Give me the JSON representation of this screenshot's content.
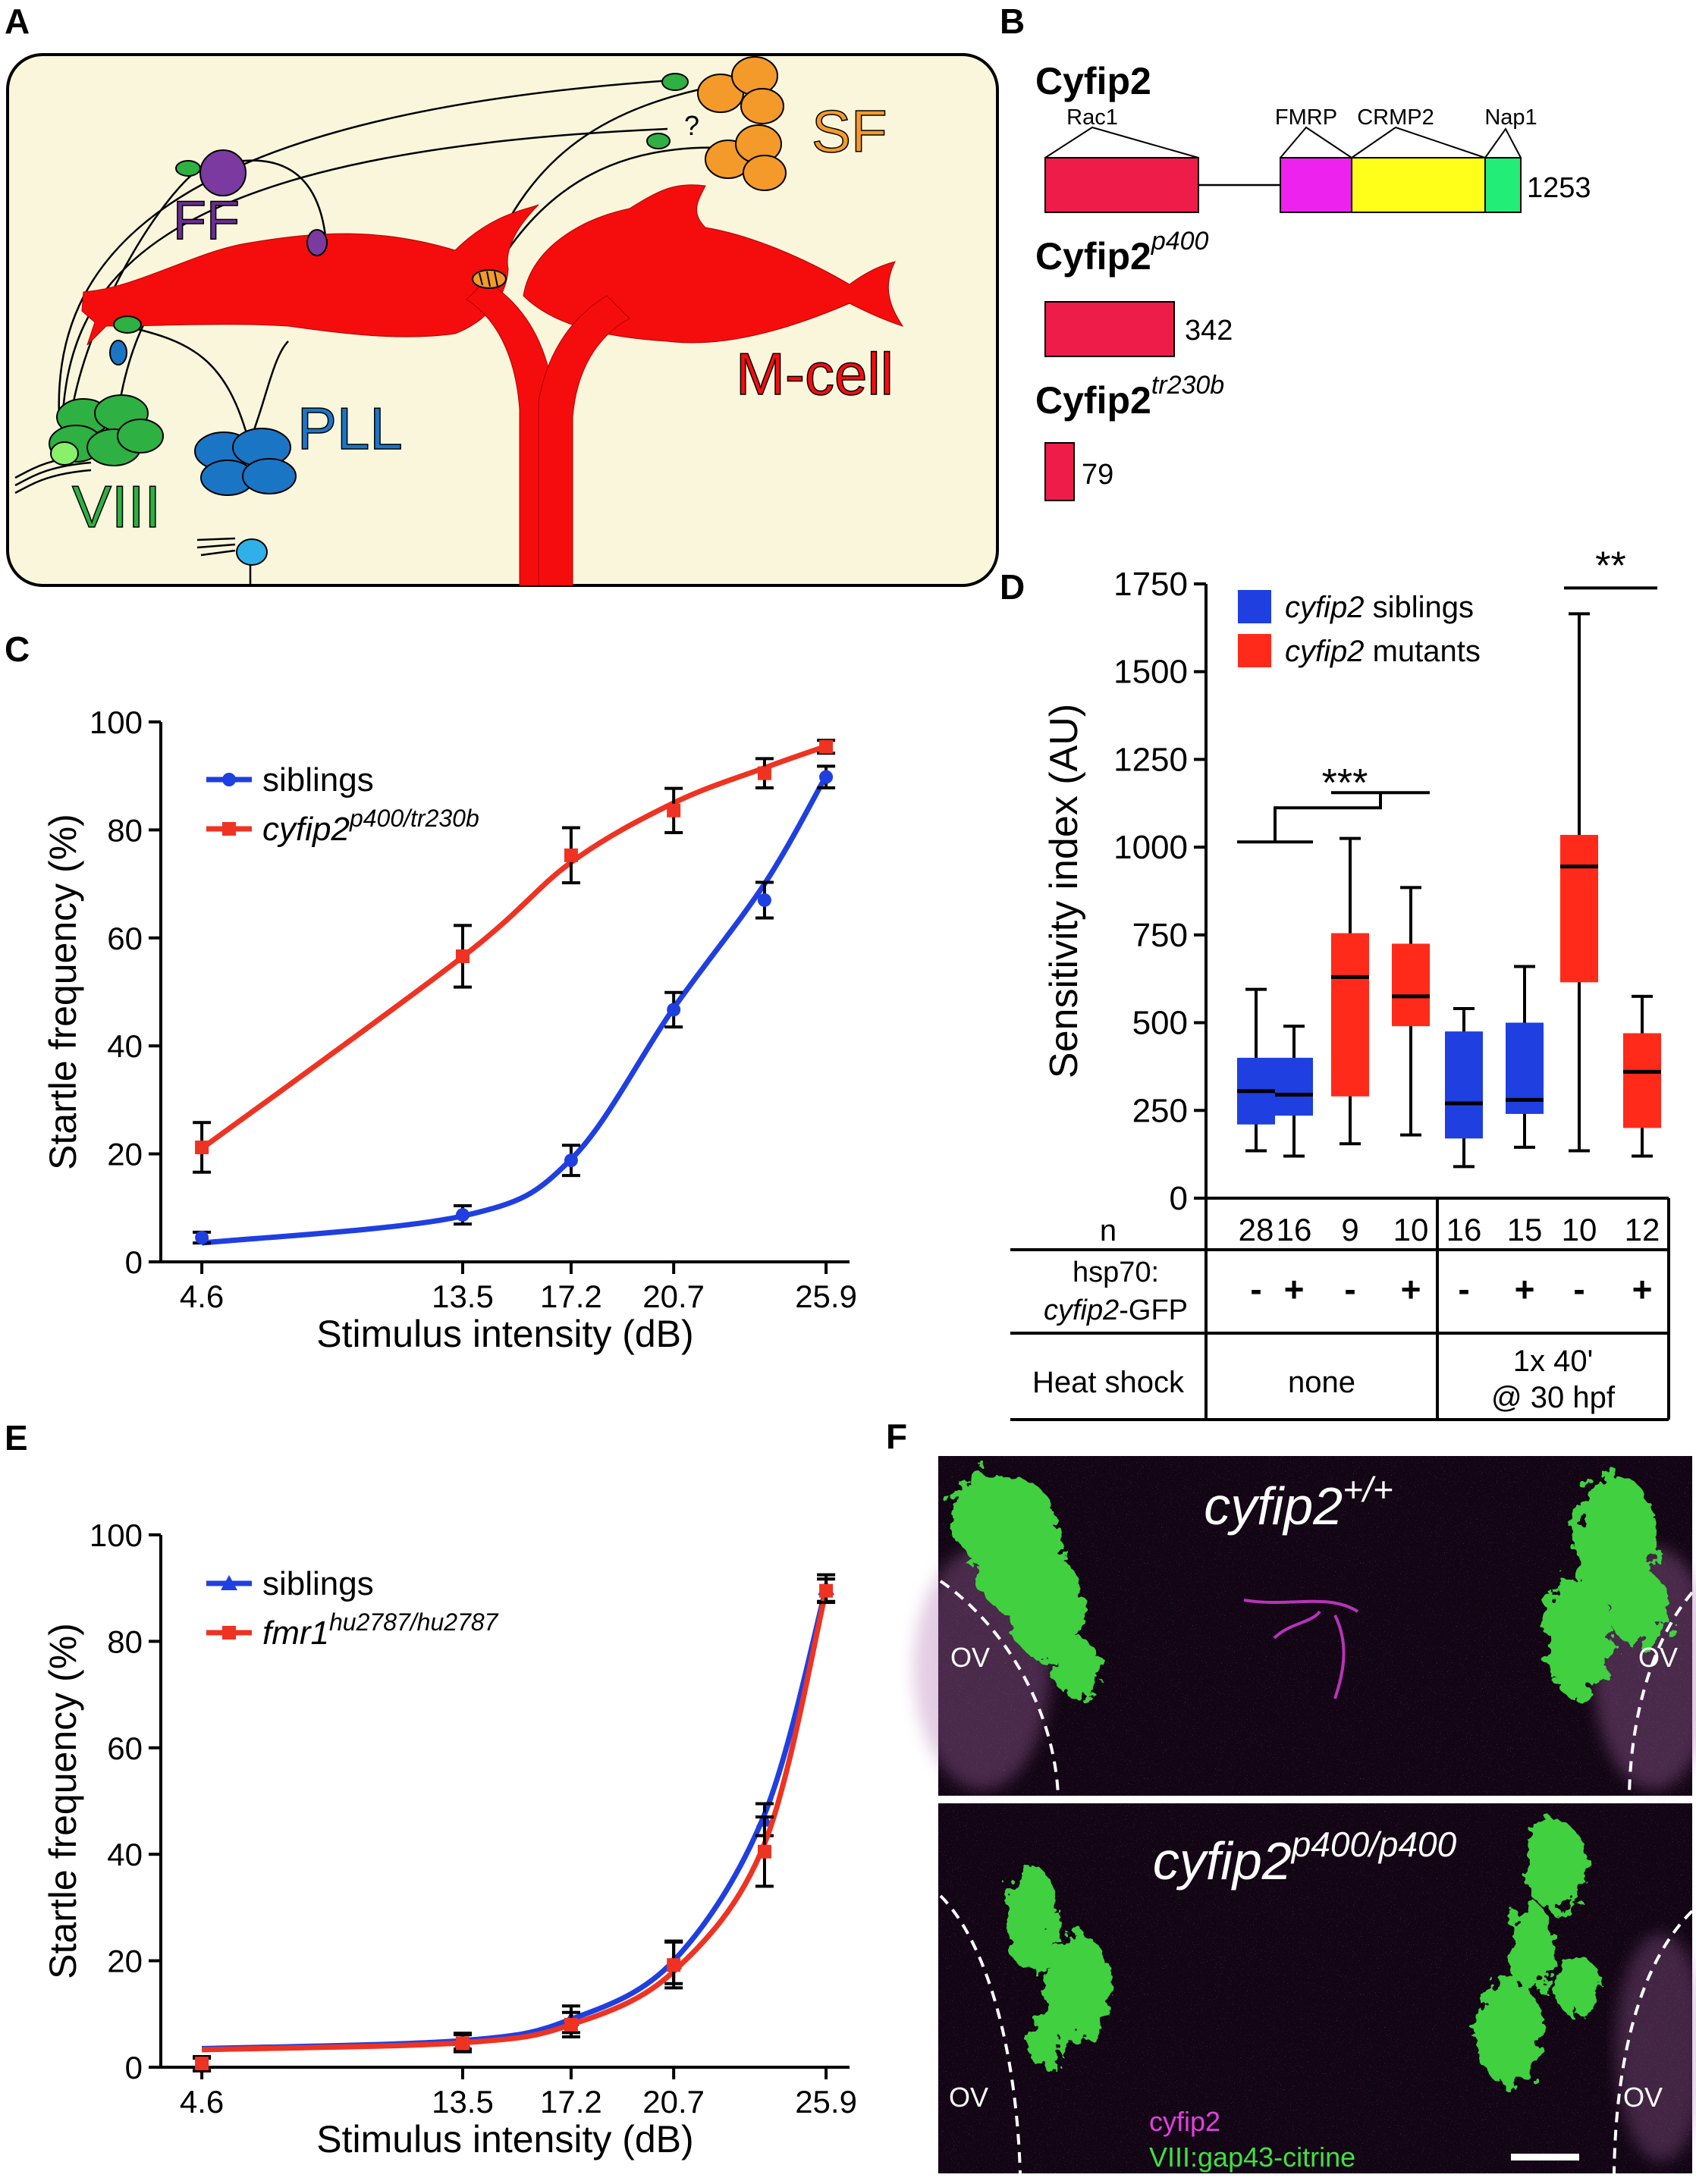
{
  "panels": {
    "A": {
      "label": "A",
      "nuclei": {
        "FF": "FF",
        "SF": "SF",
        "PLL": "PLL",
        "VIII": "VIII",
        "mcell": "M-cell",
        "question": "?"
      }
    },
    "B": {
      "label": "B",
      "proteins": [
        {
          "name": "Cyfip2",
          "superscript": "",
          "length": "1253",
          "domains": [
            "Rac1",
            "FMRP",
            "CRMP2",
            "Nap1"
          ]
        },
        {
          "name": "Cyfip2",
          "superscript": "p400",
          "length": "342"
        },
        {
          "name": "Cyfip2",
          "superscript": "tr230b",
          "length": "79"
        }
      ],
      "colors": {
        "rac1": "#ee1c48",
        "fmrp": "#ee22ee",
        "crmp2": "#ffff1a",
        "nap1": "#22ee77"
      }
    },
    "C": {
      "label": "C",
      "chart_data": {
        "type": "line",
        "xlabel": "Stimulus intensity (dB)",
        "ylabel": "Startle frequency (%)",
        "ylim": [
          0,
          100
        ],
        "yticks": [
          "0",
          "20",
          "40",
          "60",
          "80",
          "100"
        ],
        "xticks": [
          "4.6",
          "13.5",
          "17.2",
          "20.7",
          "25.9"
        ],
        "xtick_values": [
          4.6,
          13.5,
          17.2,
          20.7,
          25.9
        ],
        "xlim": [
          3.2,
          26.7
        ],
        "legend_position": "top-left",
        "series": [
          {
            "name": "siblings",
            "name_super": "",
            "color": "#1f3fe0",
            "marker": "circle",
            "x": [
              4.6,
              13.5,
              17.2,
              20.7,
              23.8,
              25.9
            ],
            "y": [
              4.5,
              8.7,
              18.8,
              46.7,
              67.0,
              89.8
            ],
            "err": [
              1.0,
              1.7,
              2.8,
              3.2,
              3.3,
              2.0
            ],
            "fit": [
              3.5,
              8.5,
              19.0,
              47.0,
              70.0,
              90.0
            ]
          },
          {
            "name": "cyfip2",
            "name_super": "p400/tr230b",
            "color": "#ee3322",
            "marker": "square",
            "x": [
              4.6,
              13.5,
              17.2,
              20.7,
              23.8,
              25.9
            ],
            "y": [
              21.2,
              56.6,
              75.3,
              83.6,
              90.5,
              95.4
            ],
            "err": [
              4.6,
              5.7,
              5.1,
              4.1,
              2.7,
              1.2
            ],
            "fit": [
              21.0,
              56.5,
              74.0,
              85.0,
              91.5,
              95.5
            ]
          }
        ]
      }
    },
    "D": {
      "label": "D",
      "chart_data": {
        "type": "box",
        "ylabel": "Sensitivity index (AU)",
        "ylim": [
          0,
          1750
        ],
        "yticks": [
          "0",
          "250",
          "500",
          "750",
          "1000",
          "1250",
          "1500",
          "1750"
        ],
        "legend": [
          {
            "name_italic": "cyfip2",
            "name_rest": " siblings",
            "color": "#1f3fe0"
          },
          {
            "name_italic": "cyfip2",
            "name_rest": " mutants",
            "color": "#ff2a1a"
          }
        ],
        "boxes": [
          {
            "group": "siblings",
            "whisker_low": 135,
            "q1": 210,
            "median": 305,
            "q3": 400,
            "whisker_high": 595
          },
          {
            "group": "siblings",
            "whisker_low": 120,
            "q1": 235,
            "median": 295,
            "q3": 400,
            "whisker_high": 490
          },
          {
            "group": "mutants",
            "whisker_low": 155,
            "q1": 290,
            "median": 630,
            "q3": 755,
            "whisker_high": 1025
          },
          {
            "group": "mutants",
            "whisker_low": 180,
            "q1": 490,
            "median": 575,
            "q3": 725,
            "whisker_high": 885
          },
          {
            "group": "siblings",
            "whisker_low": 90,
            "q1": 170,
            "median": 270,
            "q3": 475,
            "whisker_high": 540
          },
          {
            "group": "siblings",
            "whisker_low": 145,
            "q1": 240,
            "median": 280,
            "q3": 500,
            "whisker_high": 660
          },
          {
            "group": "mutants",
            "whisker_low": 135,
            "q1": 615,
            "median": 945,
            "q3": 1035,
            "whisker_high": 1665
          },
          {
            "group": "mutants",
            "whisker_low": 120,
            "q1": 200,
            "median": 360,
            "q3": 470,
            "whisker_high": 575
          }
        ],
        "significance": [
          {
            "label": "***",
            "level": 1015
          },
          {
            "label": "**",
            "level": 1760
          }
        ],
        "table": {
          "n_label": "n",
          "n_values": [
            "28",
            "16",
            "9",
            "10",
            "16",
            "15",
            "10",
            "12"
          ],
          "hsp_label_line1": "hsp70:",
          "hsp_label_line2_italic": "cyfip2",
          "hsp_label_line2_rest": "-GFP",
          "hsp_values": [
            "-",
            "+",
            "-",
            "+",
            "-",
            "+",
            "-",
            "+"
          ],
          "heat_label": "Heat shock",
          "heat_none": "none",
          "heat_shock_line1": "1x 40'",
          "heat_shock_line2": "@ 30 hpf"
        }
      }
    },
    "E": {
      "label": "E",
      "chart_data": {
        "type": "line",
        "xlabel": "Stimulus intensity (dB)",
        "ylabel": "Startle frequency (%)",
        "ylim": [
          0,
          100
        ],
        "yticks": [
          "0",
          "20",
          "40",
          "60",
          "80",
          "100"
        ],
        "xticks": [
          "4.6",
          "13.5",
          "17.2",
          "20.7",
          "25.9"
        ],
        "xtick_values": [
          4.6,
          13.5,
          17.2,
          20.7,
          25.9
        ],
        "xlim": [
          3.2,
          26.7
        ],
        "legend_position": "top-left",
        "series": [
          {
            "name": "siblings",
            "name_super": "",
            "color": "#1f3fe0",
            "marker": "triangle",
            "x": [
              4.6,
              13.5,
              17.2,
              20.7,
              23.8,
              25.9
            ],
            "y": [
              0.5,
              4.9,
              9.0,
              19.7,
              46.5,
              90.0
            ],
            "err": [
              1.2,
              1.5,
              2.5,
              4.0,
              3.0,
              2.5
            ],
            "fit": [
              3.5,
              5.0,
              9.0,
              20.0,
              47.5,
              90.0
            ]
          },
          {
            "name": "fmr1",
            "name_super": "hu2787/hu2787",
            "color": "#ee3322",
            "marker": "square",
            "x": [
              4.6,
              13.5,
              17.2,
              20.7,
              23.8,
              25.9
            ],
            "y": [
              0.7,
              4.5,
              8.0,
              19.2,
              40.5,
              89.5
            ],
            "err": [
              1.3,
              1.6,
              2.3,
              4.3,
              6.5,
              2.2
            ],
            "fit": [
              3.3,
              4.6,
              8.0,
              18.0,
              42.0,
              89.5
            ]
          }
        ]
      }
    },
    "F": {
      "label": "F",
      "top_genotype": "cyfip2",
      "top_super": "+/+",
      "bottom_genotype": "cyfip2",
      "bottom_super": "p400/p400",
      "ov_label": "OV",
      "legend_magenta": "cyfip2",
      "legend_green": "VIII:gap43-citrine",
      "colors": {
        "magenta": "#e040e0",
        "green": "#40e040"
      }
    }
  }
}
